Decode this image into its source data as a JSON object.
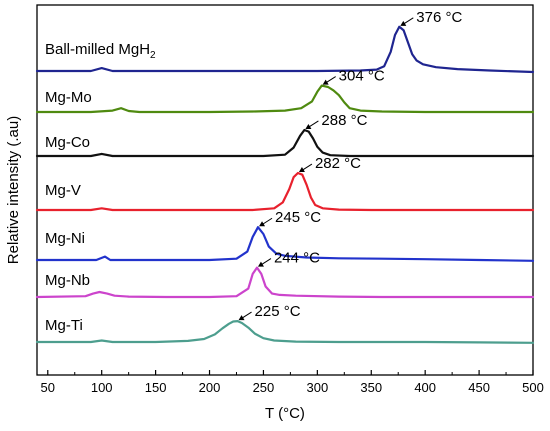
{
  "chart_data": {
    "type": "line",
    "xlabel": "T (°C)",
    "ylabel": "Relative intensity (.au)",
    "xlim": [
      40,
      500
    ],
    "x_ticks": [
      50,
      100,
      150,
      200,
      250,
      300,
      350,
      400,
      450,
      500
    ],
    "y_ticks": "none",
    "grid": false,
    "legend": "none",
    "series": [
      {
        "name": "Ball-milled MgH2",
        "label_main": "Ball-milled MgH",
        "label_sub": "2",
        "color": "#1f2590",
        "peak_x": 376,
        "peak_label": "376 °C",
        "x": [
          40,
          90,
          100,
          110,
          150,
          200,
          250,
          300,
          340,
          355,
          362,
          368,
          372,
          376,
          380,
          384,
          388,
          392,
          398,
          410,
          430,
          460,
          500
        ],
        "y": [
          0.0,
          0.0,
          0.06,
          0.0,
          0.0,
          0.0,
          0.0,
          0.0,
          0.01,
          0.03,
          0.1,
          0.4,
          0.75,
          0.92,
          0.85,
          0.6,
          0.35,
          0.22,
          0.14,
          0.08,
          0.04,
          0.01,
          -0.02
        ]
      },
      {
        "name": "Mg-Mo",
        "color": "#4f8a10",
        "peak_x": 304,
        "peak_label": "304 °C",
        "x": [
          40,
          90,
          110,
          118,
          125,
          135,
          160,
          200,
          240,
          270,
          285,
          295,
          300,
          304,
          310,
          315,
          320,
          325,
          330,
          340,
          360,
          400,
          450,
          500
        ],
        "y": [
          0.0,
          0.0,
          0.03,
          0.08,
          0.02,
          0.0,
          0.0,
          0.0,
          0.01,
          0.03,
          0.08,
          0.22,
          0.42,
          0.55,
          0.52,
          0.45,
          0.35,
          0.2,
          0.08,
          0.03,
          0.01,
          0.0,
          0.0,
          0.0
        ]
      },
      {
        "name": "Mg-Co",
        "color": "#111111",
        "peak_x": 288,
        "peak_label": "288 °C",
        "x": [
          40,
          90,
          100,
          110,
          150,
          200,
          250,
          270,
          278,
          284,
          288,
          292,
          296,
          300,
          305,
          312,
          330,
          360,
          400,
          450,
          500
        ],
        "y": [
          0.0,
          0.0,
          0.05,
          0.0,
          0.0,
          0.0,
          0.0,
          0.03,
          0.2,
          0.48,
          0.62,
          0.58,
          0.42,
          0.22,
          0.08,
          0.02,
          0.0,
          0.0,
          0.0,
          0.0,
          0.0
        ]
      },
      {
        "name": "Mg-V",
        "color": "#e8212d",
        "peak_x": 282,
        "peak_label": "282 °C",
        "x": [
          40,
          90,
          100,
          110,
          150,
          200,
          240,
          260,
          268,
          274,
          278,
          282,
          286,
          290,
          294,
          298,
          305,
          320,
          350,
          400,
          450,
          500
        ],
        "y": [
          0.0,
          0.0,
          0.04,
          0.0,
          0.0,
          0.0,
          0.0,
          0.04,
          0.18,
          0.5,
          0.78,
          0.88,
          0.84,
          0.6,
          0.3,
          0.12,
          0.04,
          0.01,
          0.0,
          0.0,
          0.0,
          0.0
        ]
      },
      {
        "name": "Mg-Ni",
        "color": "#2233cc",
        "peak_x": 245,
        "peak_label": "245 °C",
        "x": [
          40,
          95,
          103,
          108,
          150,
          200,
          225,
          235,
          240,
          245,
          250,
          255,
          262,
          270,
          290,
          320,
          360,
          400,
          450,
          500
        ],
        "y": [
          0.0,
          0.0,
          0.08,
          0.0,
          0.0,
          0.0,
          0.03,
          0.2,
          0.55,
          0.78,
          0.62,
          0.32,
          0.15,
          0.1,
          0.06,
          0.04,
          0.03,
          0.02,
          0.0,
          -0.02
        ]
      },
      {
        "name": "Mg-Nb",
        "color": "#cc44cc",
        "peak_x": 244,
        "peak_label": "244 °C",
        "x": [
          40,
          85,
          92,
          98,
          105,
          112,
          125,
          160,
          200,
          225,
          236,
          240,
          244,
          248,
          252,
          258,
          265,
          280,
          320,
          360,
          400,
          450,
          500
        ],
        "y": [
          0.0,
          0.02,
          0.08,
          0.12,
          0.08,
          0.03,
          0.01,
          0.0,
          0.0,
          0.02,
          0.2,
          0.55,
          0.7,
          0.55,
          0.25,
          0.08,
          0.05,
          0.03,
          0.01,
          0.0,
          0.0,
          0.0,
          0.0
        ]
      },
      {
        "name": "Mg-Ti",
        "color": "#4d9e8e",
        "peak_x": 225,
        "peak_label": "225 °C",
        "x": [
          40,
          90,
          100,
          110,
          150,
          180,
          195,
          205,
          212,
          218,
          222,
          226,
          230,
          236,
          242,
          250,
          260,
          280,
          320,
          400,
          450,
          500
        ],
        "y": [
          0.0,
          0.0,
          0.04,
          0.0,
          0.0,
          0.03,
          0.08,
          0.2,
          0.36,
          0.48,
          0.54,
          0.55,
          0.5,
          0.38,
          0.22,
          0.1,
          0.04,
          0.01,
          0.0,
          0.0,
          -0.01,
          -0.02
        ]
      }
    ]
  }
}
